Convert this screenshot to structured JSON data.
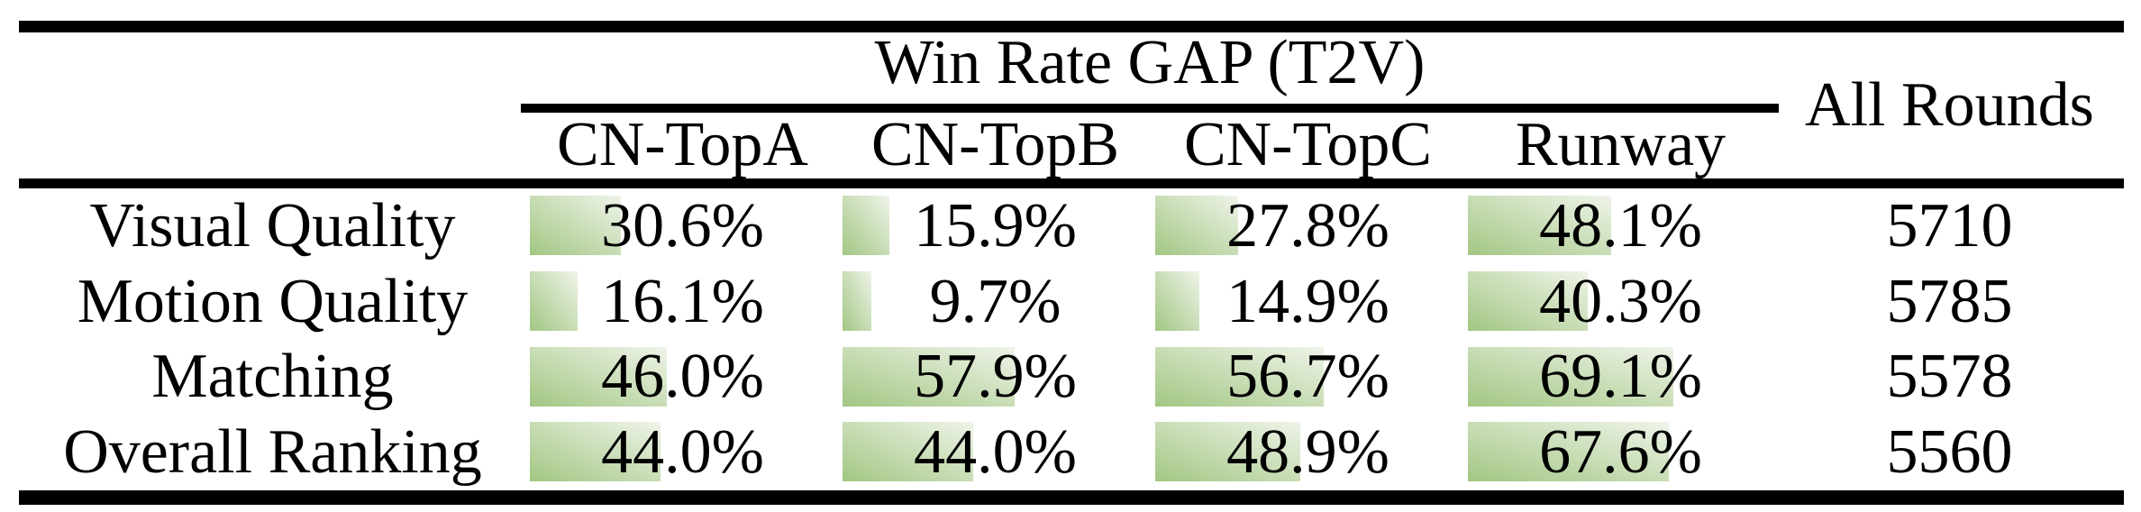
{
  "table": {
    "group_header": "Win Rate GAP (T2V)",
    "all_rounds_header": "All Rounds",
    "model_columns": [
      "CN-TopA",
      "CN-TopB",
      "CN-TopC",
      "Runway"
    ],
    "rows": [
      {
        "label": "Visual Quality",
        "values": [
          "30.6%",
          "15.9%",
          "27.8%",
          "48.1%"
        ],
        "pcts": [
          30.6,
          15.9,
          27.8,
          48.1
        ],
        "all_rounds": "5710"
      },
      {
        "label": "Motion Quality",
        "values": [
          "16.1%",
          "9.7%",
          "14.9%",
          "40.3%"
        ],
        "pcts": [
          16.1,
          9.7,
          14.9,
          40.3
        ],
        "all_rounds": "5785"
      },
      {
        "label": "Matching",
        "values": [
          "46.0%",
          "57.9%",
          "56.7%",
          "69.1%"
        ],
        "pcts": [
          46.0,
          57.9,
          56.7,
          69.1
        ],
        "all_rounds": "5578"
      },
      {
        "label": "Overall Ranking",
        "values": [
          "44.0%",
          "44.0%",
          "48.9%",
          "67.6%"
        ],
        "pcts": [
          44.0,
          44.0,
          48.9,
          67.6
        ],
        "all_rounds": "5560"
      }
    ],
    "colors": {
      "rule": "#000000",
      "text": "#000000",
      "bar_gradient_start": "#a2c683",
      "bar_gradient_end": "#eff4e9"
    }
  },
  "chart_data": {
    "type": "table",
    "title": "Win Rate GAP (T2V)",
    "columns": [
      "CN-TopA",
      "CN-TopB",
      "CN-TopC",
      "Runway",
      "All Rounds"
    ],
    "row_labels": [
      "Visual Quality",
      "Motion Quality",
      "Matching",
      "Overall Ranking"
    ],
    "win_rate_gap_percent": {
      "Visual Quality": [
        30.6,
        15.9,
        27.8,
        48.1
      ],
      "Motion Quality": [
        16.1,
        9.7,
        14.9,
        40.3
      ],
      "Matching": [
        46.0,
        57.9,
        56.7,
        69.1
      ],
      "Overall Ranking": [
        44.0,
        44.0,
        48.9,
        67.6
      ]
    },
    "all_rounds": [
      5710,
      5785,
      5578,
      5560
    ],
    "bar_scale": "cell bars are left-aligned, width proportional to percentage of column width"
  }
}
